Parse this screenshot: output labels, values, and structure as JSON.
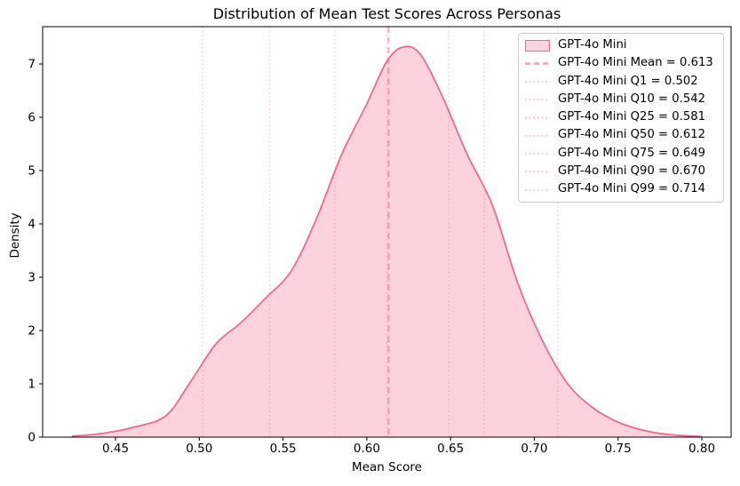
{
  "chart_data": {
    "type": "area",
    "chart_kind": "kde_density",
    "title": "Distribution of Mean Test Scores Across Personas",
    "xlabel": "Mean Score",
    "ylabel": "Density",
    "xlim": [
      0.4065,
      0.8175
    ],
    "ylim": [
      0,
      7.7
    ],
    "grid": false,
    "legend_position": "upper right",
    "x_tick_values": [
      0.45,
      0.5,
      0.55,
      0.6,
      0.65,
      0.7,
      0.75,
      0.8
    ],
    "x_tick_labels": [
      "0.45",
      "0.50",
      "0.55",
      "0.60",
      "0.65",
      "0.70",
      "0.75",
      "0.80"
    ],
    "y_tick_values": [
      0,
      1,
      2,
      3,
      4,
      5,
      6,
      7
    ],
    "y_tick_labels": [
      "0",
      "1",
      "2",
      "3",
      "4",
      "5",
      "6",
      "7"
    ],
    "series": [
      {
        "name": "GPT-4o Mini",
        "x": [
          0.424,
          0.44,
          0.46,
          0.48,
          0.495,
          0.51,
          0.525,
          0.54,
          0.555,
          0.57,
          0.585,
          0.6,
          0.612,
          0.622,
          0.632,
          0.645,
          0.66,
          0.675,
          0.69,
          0.705,
          0.72,
          0.735,
          0.75,
          0.765,
          0.78,
          0.8
        ],
        "density": [
          0.02,
          0.06,
          0.18,
          0.4,
          1.05,
          1.75,
          2.15,
          2.62,
          3.12,
          4.1,
          5.3,
          6.25,
          7.05,
          7.32,
          7.18,
          6.4,
          5.3,
          4.35,
          2.9,
          1.8,
          1.0,
          0.55,
          0.28,
          0.13,
          0.05,
          0.01
        ]
      }
    ],
    "stat_lines": [
      {
        "stat": "mean",
        "value": 0.613,
        "style": "dashed",
        "label": "GPT-4o Mini Mean = 0.613"
      },
      {
        "stat": "q1",
        "value": 0.502,
        "style": "dotted",
        "label": "GPT-4o Mini Q1 = 0.502"
      },
      {
        "stat": "q10",
        "value": 0.542,
        "style": "dotted",
        "label": "GPT-4o Mini Q10 = 0.542"
      },
      {
        "stat": "q25",
        "value": 0.581,
        "style": "dotted",
        "label": "GPT-4o Mini Q25 = 0.581"
      },
      {
        "stat": "q50",
        "value": 0.612,
        "style": "dotted",
        "label": "GPT-4o Mini Q50 = 0.612"
      },
      {
        "stat": "q75",
        "value": 0.649,
        "style": "dotted",
        "label": "GPT-4o Mini Q75 = 0.649"
      },
      {
        "stat": "q90",
        "value": 0.67,
        "style": "dotted",
        "label": "GPT-4o Mini Q90 = 0.670"
      },
      {
        "stat": "q99",
        "value": 0.714,
        "style": "dotted",
        "label": "GPT-4o Mini Q99 = 0.714"
      }
    ],
    "legend_entries": [
      {
        "label": "GPT-4o Mini",
        "swatch": "patch"
      },
      {
        "label": "GPT-4o Mini Mean = 0.613",
        "swatch": "dashed"
      },
      {
        "label": "GPT-4o Mini Q1 = 0.502",
        "swatch": "dotted"
      },
      {
        "label": "GPT-4o Mini Q10 = 0.542",
        "swatch": "dotted"
      },
      {
        "label": "GPT-4o Mini Q25 = 0.581",
        "swatch": "dotted"
      },
      {
        "label": "GPT-4o Mini Q50 = 0.612",
        "swatch": "dotted"
      },
      {
        "label": "GPT-4o Mini Q75 = 0.649",
        "swatch": "dotted"
      },
      {
        "label": "GPT-4o Mini Q90 = 0.670",
        "swatch": "dotted"
      },
      {
        "label": "GPT-4o Mini Q99 = 0.714",
        "swatch": "dotted"
      }
    ],
    "colors": {
      "curve_stroke": "#ec6a8c",
      "curve_fill": "#fbd2dd",
      "mean_line": "rgba(236,100,140,0.55)",
      "quantile_line": "rgba(236,100,140,0.30)",
      "mean_swatch": "#f5aac0",
      "quantile_swatch": "#f9d1dc",
      "axis": "#000000",
      "legend_border": "#cccccc"
    }
  }
}
